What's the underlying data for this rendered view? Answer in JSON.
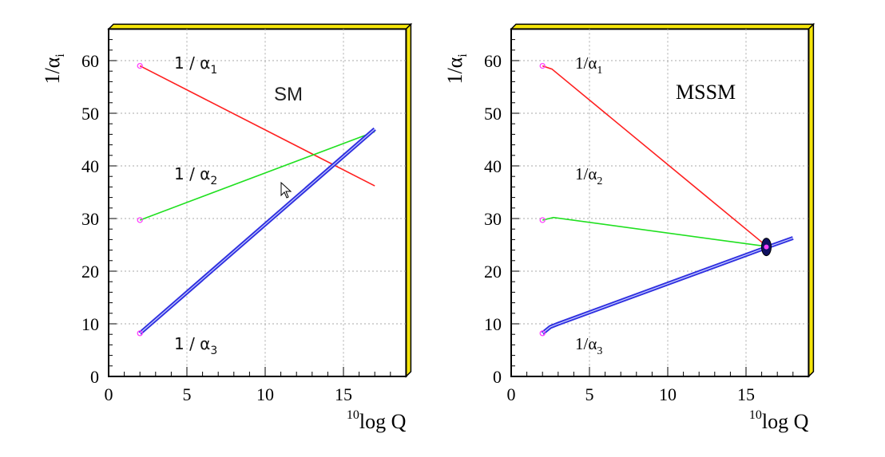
{
  "chart_data": [
    {
      "type": "line",
      "title": "SM",
      "xlabel_sup": "10",
      "xlabel": "log Q",
      "ylabel": "1/α",
      "ylabel_sub": "i",
      "xlim": [
        0,
        19
      ],
      "ylim": [
        0,
        66
      ],
      "xticks": [
        "0",
        "5",
        "10",
        "15"
      ],
      "yticks": [
        "0",
        "10",
        "20",
        "30",
        "40",
        "50",
        "60"
      ],
      "grid": true,
      "frame_color": "#f5e50a",
      "series": [
        {
          "name": "1/α",
          "sub": "1",
          "color": "#ff2020",
          "double": false,
          "points": [
            [
              2,
              59
            ],
            [
              17,
              36.2
            ]
          ]
        },
        {
          "name": "1/α",
          "sub": "2",
          "color": "#20e020",
          "double": false,
          "points": [
            [
              2,
              29.7
            ],
            [
              17,
              46.5
            ]
          ]
        },
        {
          "name": "1/α",
          "sub": "3",
          "color": "#3030e0",
          "double": true,
          "points": [
            [
              2,
              8.2
            ],
            [
              17,
              47
            ]
          ]
        }
      ],
      "start_marker_color": "#ff40ff"
    },
    {
      "type": "line",
      "title": "MSSM",
      "xlabel_sup": "10",
      "xlabel": "log Q",
      "ylabel": "1/α",
      "ylabel_sub": "i",
      "xlim": [
        0,
        19
      ],
      "ylim": [
        0,
        66
      ],
      "xticks": [
        "0",
        "5",
        "10",
        "15"
      ],
      "yticks": [
        "0",
        "10",
        "20",
        "30",
        "40",
        "50",
        "60"
      ],
      "grid": true,
      "frame_color": "#f5e50a",
      "series": [
        {
          "name": "1/α",
          "sub": "1",
          "color": "#ff2020",
          "double": false,
          "points": [
            [
              2,
              59
            ],
            [
              2.6,
              58.4
            ],
            [
              16.3,
              24.8
            ]
          ]
        },
        {
          "name": "1/α",
          "sub": "2",
          "color": "#20e020",
          "double": false,
          "points": [
            [
              2,
              29.7
            ],
            [
              2.7,
              30.2
            ],
            [
              16.3,
              24.7
            ]
          ]
        },
        {
          "name": "1/α",
          "sub": "3",
          "color": "#3030e0",
          "double": true,
          "points": [
            [
              2,
              8.2
            ],
            [
              2.5,
              9.4
            ],
            [
              3,
              10
            ],
            [
              16.3,
              24.5
            ],
            [
              18,
              26.3
            ]
          ]
        }
      ],
      "start_marker_color": "#ff40ff",
      "unification_point": [
        16.3,
        24.6
      ]
    }
  ]
}
